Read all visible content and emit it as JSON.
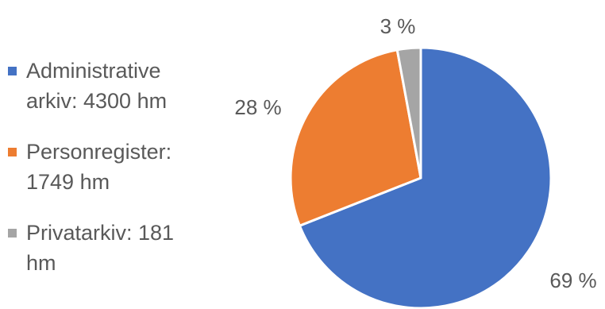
{
  "chart_data": {
    "type": "pie",
    "title": "",
    "slices": [
      {
        "name": "Administrative arkiv: 4300 hm",
        "value": 4300,
        "percent_label": "69 %",
        "color": "#4472C4"
      },
      {
        "name": "Personregister: 1749 hm",
        "value": 1749,
        "percent_label": "28 %",
        "color": "#ED7D31"
      },
      {
        "name": "Privatarkiv: 181 hm",
        "value": 181,
        "percent_label": "3 %",
        "color": "#A5A5A5"
      }
    ],
    "legend_position": "left"
  }
}
